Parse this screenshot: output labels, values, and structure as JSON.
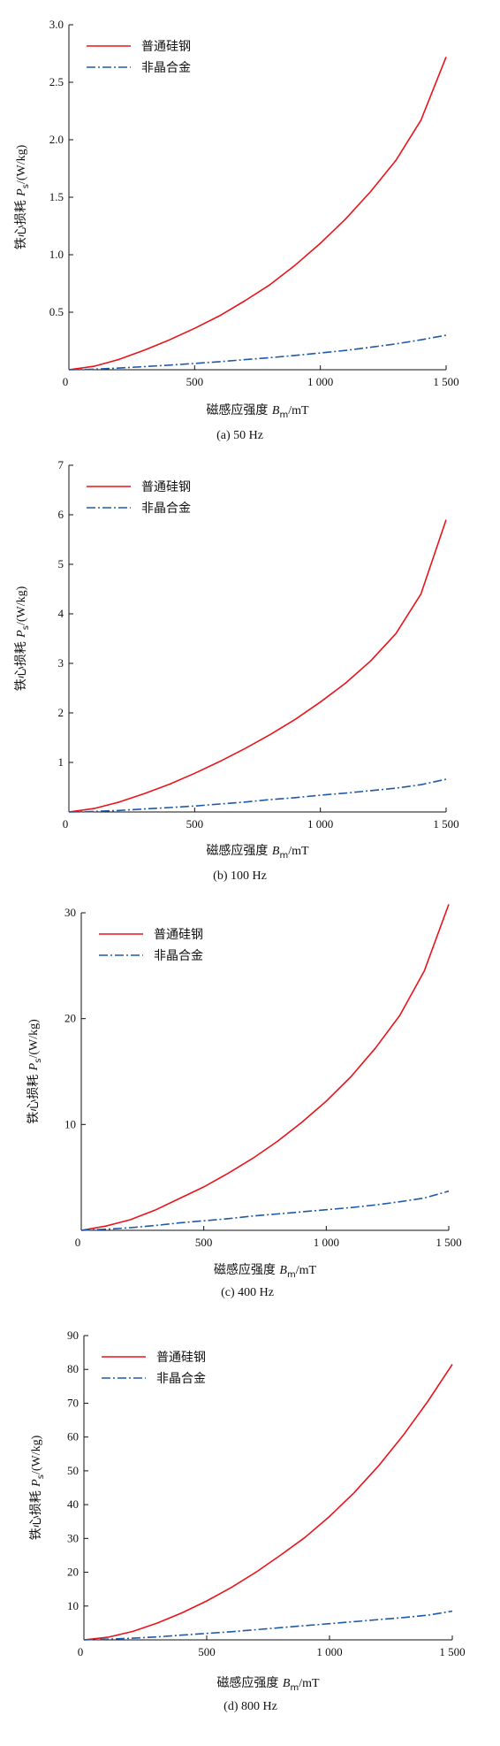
{
  "chart_data": [
    {
      "type": "line",
      "caption": "(a) 50 Hz",
      "xlabel": "磁感应强度 Bm/mT",
      "ylabel": "铁心损耗 Ps/(W/kg)",
      "xlim": [
        0,
        1500
      ],
      "ylim": [
        0,
        3.0
      ],
      "xticks": [
        500,
        1000,
        1500
      ],
      "xtick_labels": [
        "500",
        "1 000",
        "1 500"
      ],
      "yticks": [
        0.5,
        1.0,
        1.5,
        2.0,
        2.5,
        3.0
      ],
      "ytick_labels": [
        "0.5",
        "1.0",
        "1.5",
        "2.0",
        "2.5",
        "3.0"
      ],
      "origin_label": "0",
      "legend_position": "top-left",
      "series": [
        {
          "name": "普通硅钢",
          "color": "#e8141c",
          "style": "solid",
          "x": [
            0,
            100,
            200,
            300,
            400,
            500,
            600,
            700,
            800,
            900,
            1000,
            1100,
            1200,
            1300,
            1400,
            1500
          ],
          "y": [
            0,
            0.03,
            0.09,
            0.17,
            0.26,
            0.36,
            0.47,
            0.6,
            0.74,
            0.91,
            1.1,
            1.31,
            1.55,
            1.82,
            2.17,
            2.72
          ]
        },
        {
          "name": "非晶合金",
          "color": "#1f5aa6",
          "style": "dashdot",
          "x": [
            0,
            100,
            200,
            300,
            400,
            500,
            600,
            700,
            800,
            900,
            1000,
            1100,
            1200,
            1300,
            1400,
            1500
          ],
          "y": [
            0,
            0.005,
            0.015,
            0.027,
            0.04,
            0.055,
            0.07,
            0.088,
            0.105,
            0.125,
            0.145,
            0.168,
            0.195,
            0.225,
            0.26,
            0.3
          ]
        }
      ]
    },
    {
      "type": "line",
      "caption": "(b) 100 Hz",
      "xlabel": "磁感应强度 Bm/mT",
      "ylabel": "铁心损耗 Ps/(W/kg)",
      "xlim": [
        0,
        1500
      ],
      "ylim": [
        0,
        7
      ],
      "xticks": [
        500,
        1000,
        1500
      ],
      "xtick_labels": [
        "500",
        "1 000",
        "1 500"
      ],
      "yticks": [
        1,
        2,
        3,
        4,
        5,
        6,
        7
      ],
      "ytick_labels": [
        "1",
        "2",
        "3",
        "4",
        "5",
        "6",
        "7"
      ],
      "origin_label": "0",
      "legend_position": "top-left",
      "series": [
        {
          "name": "普通硅钢",
          "color": "#e8141c",
          "style": "solid",
          "x": [
            0,
            100,
            200,
            300,
            400,
            500,
            600,
            700,
            800,
            900,
            1000,
            1100,
            1200,
            1300,
            1400,
            1500
          ],
          "y": [
            0,
            0.07,
            0.2,
            0.37,
            0.56,
            0.78,
            1.02,
            1.28,
            1.56,
            1.87,
            2.22,
            2.6,
            3.05,
            3.6,
            4.4,
            5.9
          ]
        },
        {
          "name": "非晶合金",
          "color": "#1f5aa6",
          "style": "dashdot",
          "x": [
            0,
            100,
            200,
            300,
            400,
            500,
            600,
            700,
            800,
            900,
            1000,
            1100,
            1200,
            1300,
            1400,
            1500
          ],
          "y": [
            0,
            0.01,
            0.03,
            0.06,
            0.09,
            0.12,
            0.16,
            0.2,
            0.25,
            0.29,
            0.34,
            0.38,
            0.43,
            0.48,
            0.55,
            0.66
          ]
        }
      ]
    },
    {
      "type": "line",
      "caption": "(c) 400 Hz",
      "xlabel": "磁感应强度 Bm/mT",
      "ylabel": "铁心损耗 Ps/(W/kg)",
      "xlim": [
        0,
        1500
      ],
      "ylim": [
        0,
        30
      ],
      "xticks": [
        500,
        1000,
        1500
      ],
      "xtick_labels": [
        "500",
        "1 000",
        "1 500"
      ],
      "yticks": [
        10,
        20,
        30
      ],
      "ytick_labels": [
        "10",
        "20",
        "30"
      ],
      "origin_label": "0",
      "legend_position": "top-left",
      "series": [
        {
          "name": "普通硅钢",
          "color": "#e8141c",
          "style": "solid",
          "x": [
            0,
            100,
            200,
            300,
            400,
            500,
            600,
            700,
            800,
            900,
            1000,
            1100,
            1200,
            1300,
            1400,
            1500
          ],
          "y": [
            0,
            0.4,
            1.0,
            1.9,
            3.0,
            4.1,
            5.4,
            6.8,
            8.4,
            10.2,
            12.2,
            14.5,
            17.2,
            20.3,
            24.5,
            30.8
          ]
        },
        {
          "name": "非晶合金",
          "color": "#1f5aa6",
          "style": "dashdot",
          "x": [
            0,
            100,
            200,
            300,
            400,
            500,
            600,
            700,
            800,
            900,
            1000,
            1100,
            1200,
            1300,
            1400,
            1500
          ],
          "y": [
            0,
            0.1,
            0.25,
            0.45,
            0.7,
            0.9,
            1.1,
            1.35,
            1.55,
            1.75,
            1.95,
            2.15,
            2.4,
            2.7,
            3.05,
            3.7
          ]
        }
      ]
    },
    {
      "type": "line",
      "caption": "(d) 800 Hz",
      "xlabel": "磁感应强度 Bm/mT",
      "ylabel": "铁心损耗 Ps/(W/kg)",
      "xlim": [
        0,
        1500
      ],
      "ylim": [
        0,
        90
      ],
      "xticks": [
        500,
        1000,
        1500
      ],
      "xtick_labels": [
        "500",
        "1 000",
        "1 500"
      ],
      "yticks": [
        10,
        20,
        30,
        40,
        50,
        60,
        70,
        80,
        90
      ],
      "ytick_labels": [
        "10",
        "20",
        "30",
        "40",
        "50",
        "60",
        "70",
        "80",
        "90"
      ],
      "origin_label": "0",
      "legend_position": "top-left",
      "series": [
        {
          "name": "普通硅钢",
          "color": "#e8141c",
          "style": "solid",
          "x": [
            0,
            100,
            200,
            300,
            400,
            500,
            600,
            700,
            800,
            900,
            1000,
            1100,
            1200,
            1300,
            1400,
            1500
          ],
          "y": [
            0,
            0.8,
            2.5,
            5.0,
            8.0,
            11.5,
            15.5,
            20.0,
            25.0,
            30.3,
            36.5,
            43.5,
            51.5,
            60.5,
            70.5,
            81.5
          ]
        },
        {
          "name": "非晶合金",
          "color": "#1f5aa6",
          "style": "dashdot",
          "x": [
            0,
            100,
            200,
            300,
            400,
            500,
            600,
            700,
            800,
            900,
            1000,
            1100,
            1200,
            1300,
            1400,
            1500
          ],
          "y": [
            0,
            0.2,
            0.5,
            0.9,
            1.4,
            1.9,
            2.4,
            3.0,
            3.6,
            4.2,
            4.8,
            5.4,
            6.0,
            6.6,
            7.3,
            8.5
          ]
        }
      ]
    }
  ]
}
